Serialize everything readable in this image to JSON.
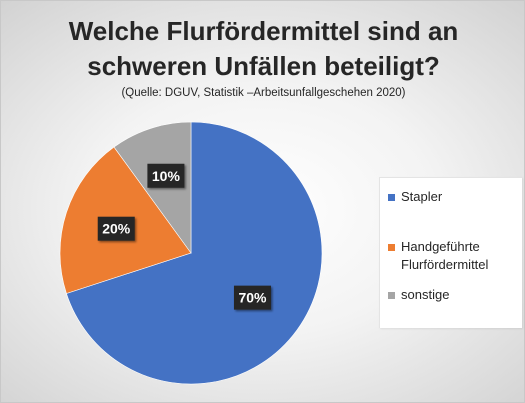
{
  "chart_data": {
    "type": "pie",
    "title_line1": "Welche Flurfördermittel sind an",
    "title_line2": "schweren Unfällen beteiligt?",
    "subtitle": "(Quelle: DGUV, Statistik –Arbeitsunfallgeschehen 2020)",
    "slices": [
      {
        "label": "Stapler",
        "legend_label": "Stapler",
        "value": 70,
        "display": "70%",
        "color": "#4472C4"
      },
      {
        "label": "Handgeführte Flurfördermittel",
        "legend_label": "Handgeführte\nFlurfördermittel",
        "value": 20,
        "display": "20%",
        "color": "#ED7D31"
      },
      {
        "label": "sonstige",
        "legend_label": "sonstige",
        "value": 10,
        "display": "10%",
        "color": "#A5A5A5"
      }
    ],
    "start_angle": "12 o'clock",
    "direction": "clockwise",
    "legend_position": "right"
  }
}
